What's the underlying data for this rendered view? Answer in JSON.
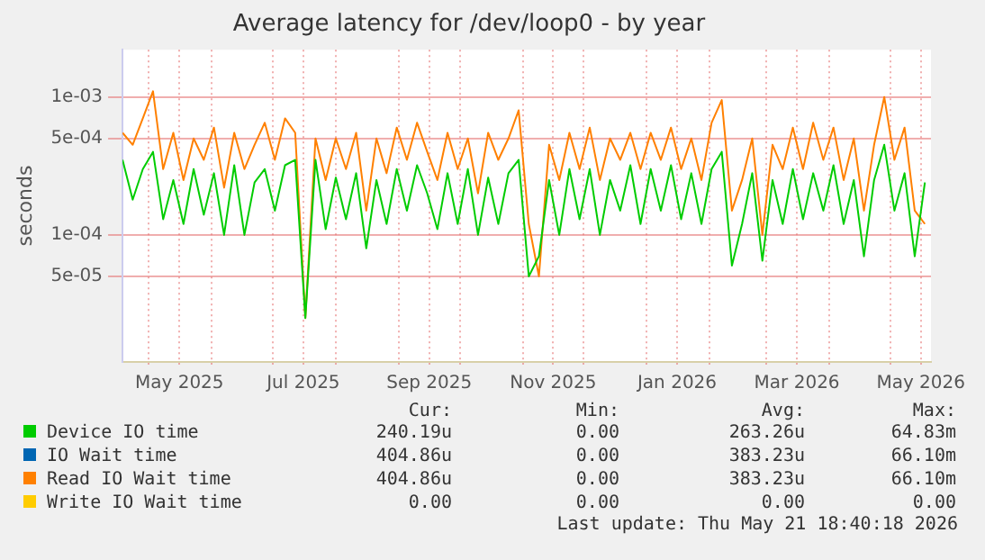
{
  "chart_data": {
    "type": "line",
    "title": "Average latency for /dev/loop0 - by year",
    "ylabel": "seconds",
    "log": "y",
    "grid": true,
    "legend": "bottom",
    "marker": "none",
    "line_style": "solid",
    "xlim": [
      "2025-04-18",
      "2026-05-21"
    ],
    "xticks": [
      {
        "value": "2025-05-01",
        "label": null
      },
      {
        "value": "2025-05-16",
        "label": "May 2025"
      },
      {
        "value": "2025-06-01",
        "label": null
      },
      {
        "value": "2025-07-01",
        "label": null
      },
      {
        "value": "2025-07-16",
        "label": "Jul 2025"
      },
      {
        "value": "2025-08-01",
        "label": null
      },
      {
        "value": "2025-09-01",
        "label": null
      },
      {
        "value": "2025-09-16",
        "label": "Sep 2025"
      },
      {
        "value": "2025-10-01",
        "label": null
      },
      {
        "value": "2025-11-01",
        "label": null
      },
      {
        "value": "2025-11-16",
        "label": "Nov 2025"
      },
      {
        "value": "2025-12-01",
        "label": null
      },
      {
        "value": "2026-01-01",
        "label": null
      },
      {
        "value": "2026-01-16",
        "label": "Jan 2026"
      },
      {
        "value": "2026-02-01",
        "label": null
      },
      {
        "value": "2026-03-01",
        "label": null
      },
      {
        "value": "2026-03-16",
        "label": "Mar 2026"
      },
      {
        "value": "2026-04-01",
        "label": null
      },
      {
        "value": "2026-05-01",
        "label": null
      },
      {
        "value": "2026-05-16",
        "label": "May 2026"
      }
    ],
    "ylim": [
      1.2e-05,
      0.0022
    ],
    "yticks": [
      {
        "value": 5e-05,
        "label": "5e-05"
      },
      {
        "value": 0.0001,
        "label": "1e-04"
      },
      {
        "value": 0.0005,
        "label": "5e-04"
      },
      {
        "value": 0.001,
        "label": "1e-03"
      }
    ],
    "x": [
      "2025-04-18",
      "2025-04-23",
      "2025-04-28",
      "2025-05-03",
      "2025-05-08",
      "2025-05-13",
      "2025-05-18",
      "2025-05-23",
      "2025-05-28",
      "2025-06-02",
      "2025-06-07",
      "2025-06-12",
      "2025-06-17",
      "2025-06-22",
      "2025-06-27",
      "2025-07-02",
      "2025-07-07",
      "2025-07-12",
      "2025-07-17",
      "2025-07-22",
      "2025-07-27",
      "2025-08-01",
      "2025-08-06",
      "2025-08-11",
      "2025-08-16",
      "2025-08-21",
      "2025-08-26",
      "2025-08-31",
      "2025-09-05",
      "2025-09-10",
      "2025-09-15",
      "2025-09-20",
      "2025-09-25",
      "2025-09-30",
      "2025-10-05",
      "2025-10-10",
      "2025-10-15",
      "2025-10-20",
      "2025-10-25",
      "2025-10-30",
      "2025-11-04",
      "2025-11-09",
      "2025-11-14",
      "2025-11-19",
      "2025-11-24",
      "2025-11-29",
      "2025-12-04",
      "2025-12-09",
      "2025-12-14",
      "2025-12-19",
      "2025-12-24",
      "2025-12-29",
      "2026-01-03",
      "2026-01-08",
      "2026-01-13",
      "2026-01-18",
      "2026-01-23",
      "2026-01-28",
      "2026-02-02",
      "2026-02-07",
      "2026-02-12",
      "2026-02-17",
      "2026-02-22",
      "2026-02-27",
      "2026-03-04",
      "2026-03-09",
      "2026-03-14",
      "2026-03-19",
      "2026-03-24",
      "2026-03-29",
      "2026-04-03",
      "2026-04-08",
      "2026-04-13",
      "2026-04-18",
      "2026-04-23",
      "2026-04-28",
      "2026-05-03",
      "2026-05-08",
      "2026-05-13",
      "2026-05-18"
    ],
    "series": [
      {
        "name": "Device IO time",
        "color": "#00cc00",
        "values": [
          0.00035,
          0.00018,
          0.0003,
          0.0004,
          0.00013,
          0.00025,
          0.00012,
          0.0003,
          0.00014,
          0.00028,
          0.0001,
          0.00032,
          0.0001,
          0.00024,
          0.0003,
          0.00015,
          0.00032,
          0.00035,
          2.5e-05,
          0.00035,
          0.00011,
          0.00026,
          0.00013,
          0.00028,
          8e-05,
          0.00025,
          0.00012,
          0.0003,
          0.00015,
          0.00032,
          0.0002,
          0.00011,
          0.00028,
          0.00012,
          0.0003,
          0.0001,
          0.00026,
          0.00012,
          0.00028,
          0.00035,
          5e-05,
          7e-05,
          0.00025,
          0.0001,
          0.0003,
          0.00013,
          0.0003,
          0.0001,
          0.00025,
          0.00015,
          0.00032,
          0.00012,
          0.0003,
          0.00015,
          0.00032,
          0.00013,
          0.00028,
          0.00012,
          0.0003,
          0.0004,
          6e-05,
          0.00012,
          0.00028,
          6.5e-05,
          0.00025,
          0.00012,
          0.0003,
          0.00013,
          0.00028,
          0.00015,
          0.00032,
          0.00012,
          0.00025,
          7e-05,
          0.00025,
          0.00045,
          0.00015,
          0.00028,
          7e-05,
          0.00024
        ]
      },
      {
        "name": "IO Wait time",
        "color": "#0066b3",
        "values": [
          null,
          null,
          null,
          null,
          null,
          null,
          null,
          null,
          null,
          null,
          null,
          null,
          null,
          null,
          null,
          null,
          null,
          null,
          null,
          null,
          null,
          null,
          null,
          null,
          null,
          null,
          null,
          null,
          null,
          null,
          null,
          null,
          null,
          null,
          null,
          null,
          null,
          null,
          null,
          null,
          null,
          null,
          null,
          null,
          null,
          null,
          null,
          null,
          null,
          null,
          null,
          null,
          null,
          null,
          null,
          null,
          null,
          null,
          null,
          null,
          null,
          null,
          null,
          null,
          null,
          null,
          null,
          null,
          null,
          null,
          null,
          null,
          null,
          null,
          null,
          null,
          null,
          null,
          null,
          null
        ]
      },
      {
        "name": "Read IO Wait time",
        "color": "#ff8000",
        "values": [
          0.00055,
          0.00045,
          0.0007,
          0.0011,
          0.0003,
          0.00055,
          0.00025,
          0.0005,
          0.00035,
          0.0006,
          0.00022,
          0.00055,
          0.0003,
          0.00045,
          0.00065,
          0.00035,
          0.0007,
          0.00055,
          2.5e-05,
          0.0005,
          0.00025,
          0.0005,
          0.0003,
          0.00055,
          0.00015,
          0.0005,
          0.00028,
          0.0006,
          0.00035,
          0.00065,
          0.0004,
          0.00025,
          0.00055,
          0.0003,
          0.0005,
          0.0002,
          0.00055,
          0.00035,
          0.0005,
          0.0008,
          0.00012,
          5e-05,
          0.00045,
          0.00025,
          0.00055,
          0.0003,
          0.0006,
          0.00025,
          0.0005,
          0.00035,
          0.00055,
          0.0003,
          0.00055,
          0.00035,
          0.0006,
          0.0003,
          0.0005,
          0.00025,
          0.00065,
          0.00095,
          0.00015,
          0.00025,
          0.0005,
          0.0001,
          0.00045,
          0.0003,
          0.0006,
          0.0003,
          0.00065,
          0.00035,
          0.0006,
          0.00025,
          0.0005,
          0.00015,
          0.00045,
          0.001,
          0.00035,
          0.0006,
          0.00015,
          0.00012
        ]
      },
      {
        "name": "Write IO Wait time",
        "color": "#ffcc00",
        "values": [
          null,
          null,
          null,
          null,
          null,
          null,
          null,
          null,
          null,
          null,
          null,
          null,
          null,
          null,
          null,
          null,
          null,
          null,
          null,
          null,
          null,
          null,
          null,
          null,
          null,
          null,
          null,
          null,
          null,
          null,
          null,
          null,
          null,
          null,
          null,
          null,
          null,
          null,
          null,
          null,
          null,
          null,
          null,
          null,
          null,
          null,
          null,
          null,
          null,
          null,
          null,
          null,
          null,
          null,
          null,
          null,
          null,
          null,
          null,
          null,
          null,
          null,
          null,
          null,
          null,
          null,
          null,
          null,
          null,
          null,
          null,
          null,
          null,
          null,
          null,
          null,
          null,
          null,
          null,
          null
        ]
      }
    ],
    "annotations": [
      "Cur:",
      "Min:",
      "Avg:",
      "Max:",
      "240.19u",
      "0.00",
      "263.26u",
      "64.83m",
      "404.86u",
      "0.00",
      "383.23u",
      "66.10m",
      "404.86u",
      "0.00",
      "383.23u",
      "66.10m",
      "0.00",
      "0.00",
      "0.00",
      "0.00",
      "Last update: Thu May 21 18:40:18 2026"
    ]
  }
}
